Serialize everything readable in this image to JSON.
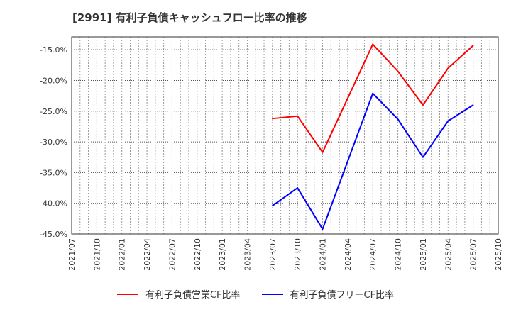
{
  "title": "[2991]  有利子負債キャッシュフロー比率の推移",
  "chart_data": {
    "type": "line",
    "title": "[2991]  有利子負債キャッシュフロー比率の推移",
    "xlabel": "",
    "ylabel": "",
    "x": [
      "2021/07",
      "2021/10",
      "2022/01",
      "2022/04",
      "2022/07",
      "2022/10",
      "2023/01",
      "2023/04",
      "2023/07",
      "2023/10",
      "2024/01",
      "2024/04",
      "2024/07",
      "2024/10",
      "2025/01",
      "2025/04",
      "2025/07",
      "2025/10"
    ],
    "ylim": [
      -45,
      -12.9
    ],
    "yticks": [
      -45,
      -40,
      -35,
      -30,
      -25,
      -20,
      -15
    ],
    "ytick_labels": [
      "-45.0%",
      "-40.0%",
      "-35.0%",
      "-30.0%",
      "-25.0%",
      "-20.0%",
      "-15.0%"
    ],
    "grid": true,
    "legend_position": "bottom",
    "series": [
      {
        "name": "有利子負債営業CF比率",
        "color": "#ff0000",
        "values": [
          null,
          null,
          null,
          null,
          null,
          null,
          null,
          null,
          -26.2,
          -25.8,
          -31.7,
          null,
          -14.1,
          -18.5,
          -24.0,
          -18.0,
          -14.3,
          null
        ]
      },
      {
        "name": "有利子負債フリーCF比率",
        "color": "#0000ff",
        "values": [
          null,
          null,
          null,
          null,
          null,
          null,
          null,
          null,
          -40.4,
          -37.5,
          -44.2,
          null,
          -22.1,
          -26.3,
          -32.5,
          -26.6,
          -24.0,
          null
        ]
      }
    ]
  }
}
